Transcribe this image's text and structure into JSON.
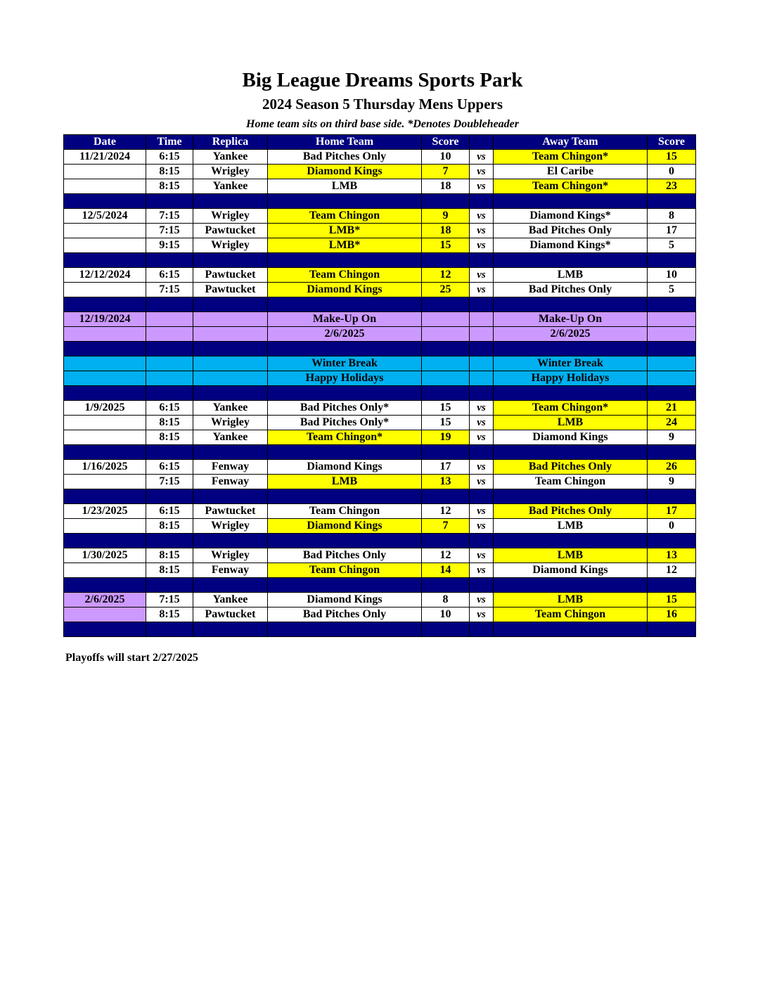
{
  "title": "Big League Dreams Sports Park",
  "subtitle": "2024 Season 5 Thursday Mens Uppers",
  "note": "Home team sits on third base side.  *Denotes Doubleheader",
  "colors": {
    "header": "#000080",
    "winner": "#ffff00",
    "makeup": "#cc99ff",
    "break": "#00b0f0"
  },
  "columns": [
    "Date",
    "Time",
    "Replica",
    "Home Team",
    "Score",
    "",
    "Away Team",
    "Score"
  ],
  "rows": [
    {
      "date": "11/21/2024",
      "time": "6:15",
      "replica": "Yankee",
      "home": "Bad Pitches Only",
      "home_score": "10",
      "vs": "vs",
      "away": "Team Chingon*",
      "away_score": "15",
      "winner": "away"
    },
    {
      "date": "",
      "time": "8:15",
      "replica": "Wrigley",
      "home": "Diamond Kings",
      "home_score": "7",
      "vs": "vs",
      "away": "El Caribe",
      "away_score": "0",
      "winner": "home"
    },
    {
      "date": "",
      "time": "8:15",
      "replica": "Yankee",
      "home": "LMB",
      "home_score": "18",
      "vs": "vs",
      "away": "Team Chingon*",
      "away_score": "23",
      "winner": "away"
    },
    {
      "type": "sep"
    },
    {
      "date": "12/5/2024",
      "time": "7:15",
      "replica": "Wrigley",
      "home": "Team Chingon",
      "home_score": "9",
      "vs": "vs",
      "away": "Diamond Kings*",
      "away_score": "8",
      "winner": "home"
    },
    {
      "date": "",
      "time": "7:15",
      "replica": "Pawtucket",
      "home": "LMB*",
      "home_score": "18",
      "vs": "vs",
      "away": "Bad Pitches Only",
      "away_score": "17",
      "winner": "home"
    },
    {
      "date": "",
      "time": "9:15",
      "replica": "Wrigley",
      "home": "LMB*",
      "home_score": "15",
      "vs": "vs",
      "away": "Diamond Kings*",
      "away_score": "5",
      "winner": "home"
    },
    {
      "type": "sep"
    },
    {
      "date": "12/12/2024",
      "time": "6:15",
      "replica": "Pawtucket",
      "home": "Team Chingon",
      "home_score": "12",
      "vs": "vs",
      "away": "LMB",
      "away_score": "10",
      "winner": "home"
    },
    {
      "date": "",
      "time": "7:15",
      "replica": "Pawtucket",
      "home": "Diamond Kings",
      "home_score": "25",
      "vs": "vs",
      "away": "Bad Pitches Only",
      "away_score": "5",
      "winner": "home"
    },
    {
      "type": "sep"
    },
    {
      "type": "makeup",
      "date": "12/19/2024",
      "home": "Make-Up On",
      "away": "Make-Up On"
    },
    {
      "type": "makeup",
      "date": "",
      "home": "2/6/2025",
      "away": "2/6/2025"
    },
    {
      "type": "sep"
    },
    {
      "type": "break",
      "date": "",
      "home": "Winter Break",
      "away": "Winter Break"
    },
    {
      "type": "break",
      "date": "",
      "home": "Happy Holidays",
      "away": "Happy Holidays"
    },
    {
      "type": "sep"
    },
    {
      "date": "1/9/2025",
      "time": "6:15",
      "replica": "Yankee",
      "home": "Bad Pitches Only*",
      "home_score": "15",
      "vs": "vs",
      "away": "Team Chingon*",
      "away_score": "21",
      "winner": "away"
    },
    {
      "date": "",
      "time": "8:15",
      "replica": "Wrigley",
      "home": "Bad Pitches Only*",
      "home_score": "15",
      "vs": "vs",
      "away": "LMB",
      "away_score": "24",
      "winner": "away"
    },
    {
      "date": "",
      "time": "8:15",
      "replica": "Yankee",
      "home": "Team Chingon*",
      "home_score": "19",
      "vs": "vs",
      "away": "Diamond Kings",
      "away_score": "9",
      "winner": "home"
    },
    {
      "type": "sep"
    },
    {
      "date": "1/16/2025",
      "time": "6:15",
      "replica": "Fenway",
      "home": "Diamond Kings",
      "home_score": "17",
      "vs": "vs",
      "away": "Bad Pitches Only",
      "away_score": "26",
      "winner": "away"
    },
    {
      "date": "",
      "time": "7:15",
      "replica": "Fenway",
      "home": "LMB",
      "home_score": "13",
      "vs": "vs",
      "away": "Team Chingon",
      "away_score": "9",
      "winner": "home"
    },
    {
      "type": "sep"
    },
    {
      "date": "1/23/2025",
      "time": "6:15",
      "replica": "Pawtucket",
      "home": "Team Chingon",
      "home_score": "12",
      "vs": "vs",
      "away": "Bad Pitches Only",
      "away_score": "17",
      "winner": "away"
    },
    {
      "date": "",
      "time": "8:15",
      "replica": "Wrigley",
      "home": "Diamond Kings",
      "home_score": "7",
      "vs": "vs",
      "away": "LMB",
      "away_score": "0",
      "winner": "home"
    },
    {
      "type": "sep"
    },
    {
      "date": "1/30/2025",
      "time": "8:15",
      "replica": "Wrigley",
      "home": "Bad Pitches Only",
      "home_score": "12",
      "vs": "vs",
      "away": "LMB",
      "away_score": "13",
      "winner": "away"
    },
    {
      "date": "",
      "time": "8:15",
      "replica": "Fenway",
      "home": "Team Chingon",
      "home_score": "14",
      "vs": "vs",
      "away": "Diamond Kings",
      "away_score": "12",
      "winner": "home"
    },
    {
      "type": "sep"
    },
    {
      "date": "2/6/2025",
      "time": "7:15",
      "replica": "Yankee",
      "home": "Diamond Kings",
      "home_score": "8",
      "vs": "vs",
      "away": "LMB",
      "away_score": "15",
      "winner": "away",
      "date_bg": "makeup"
    },
    {
      "date": "",
      "time": "8:15",
      "replica": "Pawtucket",
      "home": "Bad Pitches Only",
      "home_score": "10",
      "vs": "vs",
      "away": "Team Chingon",
      "away_score": "16",
      "winner": "away",
      "date_bg": "makeup"
    },
    {
      "type": "sep"
    }
  ],
  "footer": "Playoffs will start 2/27/2025"
}
